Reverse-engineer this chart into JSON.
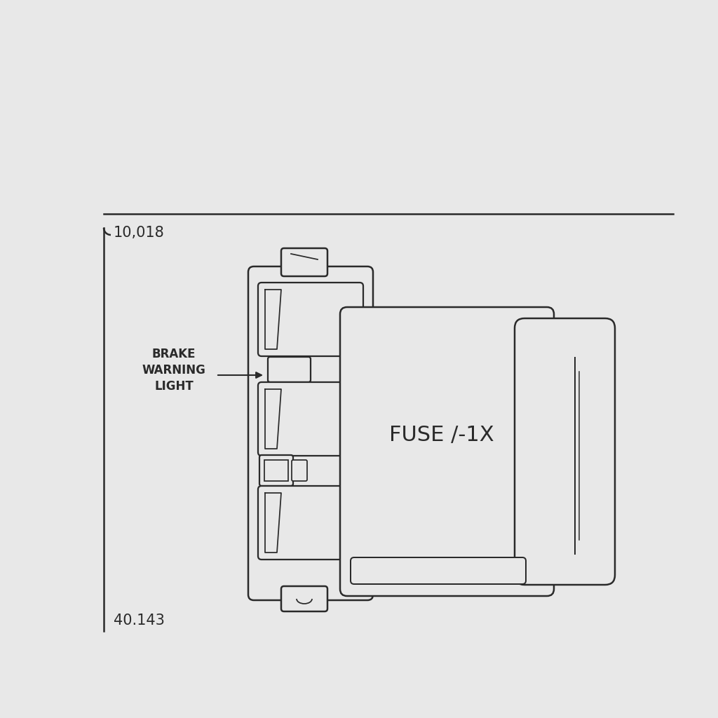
{
  "bg_color": "#e8e8e8",
  "line_color": "#2a2a2a",
  "title_label": "10,018",
  "bottom_label": "40.143",
  "fuse_label": "FUSE /-1X",
  "brake_label_lines": [
    "BRAKE",
    "WARNING",
    "LIGHT"
  ],
  "fig_width": 10.24,
  "fig_height": 10.24,
  "dpi": 100
}
